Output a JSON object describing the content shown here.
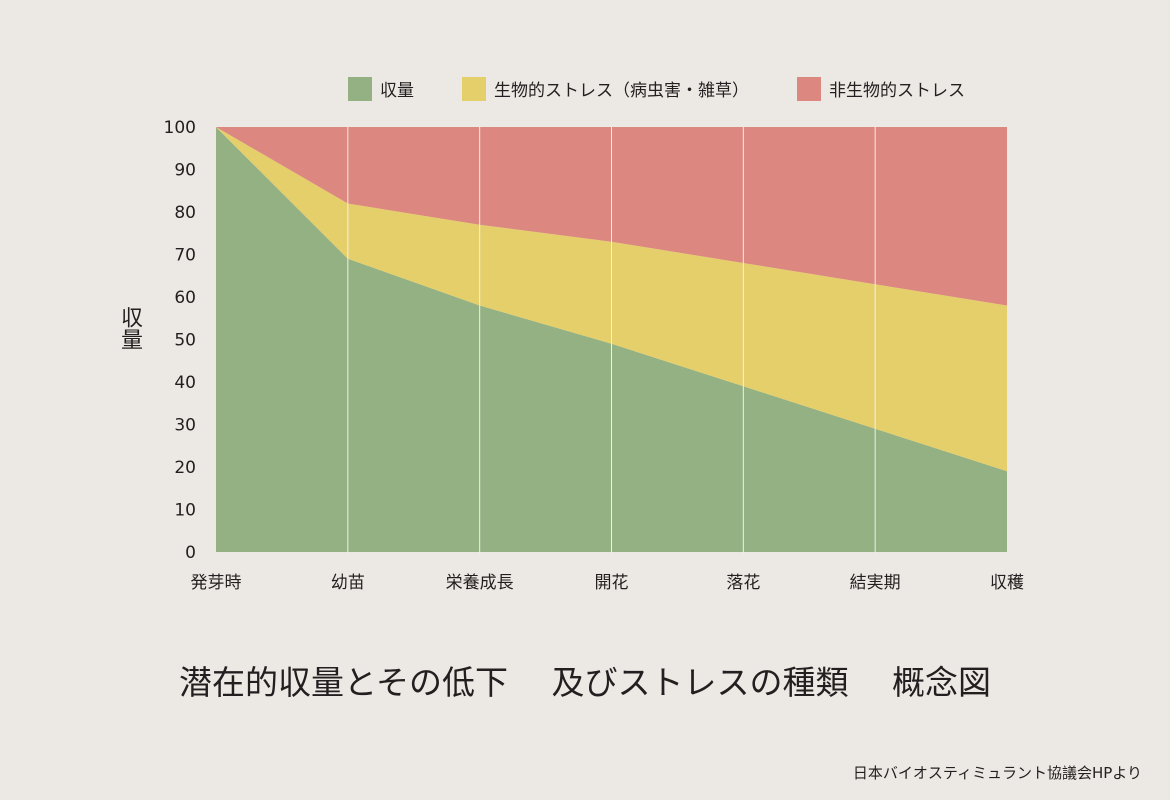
{
  "chart_data": {
    "type": "area",
    "stacked": true,
    "title": "潜在的収量とその低下　 及びストレスの種類 　概念図",
    "ylabel": "収量",
    "xlabel": "",
    "categories": [
      "発芽時",
      "幼苗",
      "栄養成長",
      "開花",
      "落花",
      "結実期",
      "収穫"
    ],
    "ylim": [
      0,
      100
    ],
    "yticks": [
      0,
      10,
      20,
      30,
      40,
      50,
      60,
      70,
      80,
      90,
      100
    ],
    "grid": "vertical",
    "legend_position": "top",
    "series": [
      {
        "name": "収量",
        "color": "#93b183",
        "values": [
          100,
          69,
          58,
          49,
          39,
          29,
          19
        ]
      },
      {
        "name": "生物的ストレス（病虫害・雑草）",
        "color": "#e5cf6a",
        "values": [
          0,
          13,
          19,
          24,
          29,
          34,
          39
        ]
      },
      {
        "name": "非生物的ストレス",
        "color": "#dc877f",
        "values": [
          0,
          18,
          23,
          27,
          32,
          37,
          42
        ]
      }
    ]
  },
  "source": "日本バイオスティミュラント協議会HPより"
}
